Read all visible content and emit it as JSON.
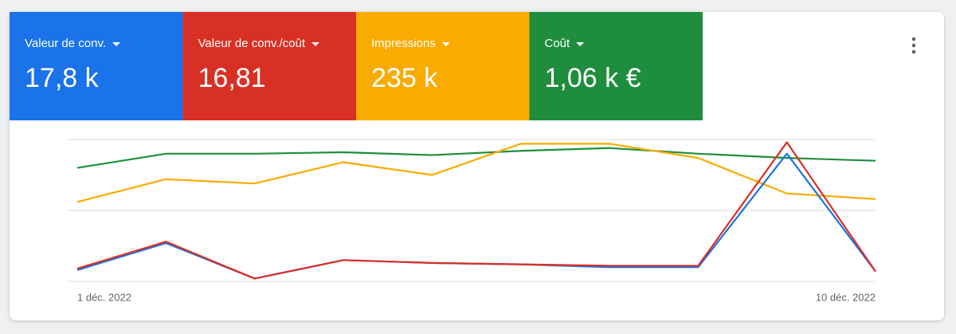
{
  "chart_data": {
    "type": "line",
    "categories": [
      "1 déc. 2022",
      null,
      null,
      null,
      null,
      null,
      null,
      null,
      null,
      "10 déc. 2022"
    ],
    "ylim": [
      0,
      100
    ],
    "yticks": [
      0,
      50,
      100
    ],
    "grid": true,
    "series": [
      {
        "name": "Valeur de conv.",
        "summary": "17,8 k",
        "color": "#1a73e8",
        "values": [
          8,
          27,
          2,
          15,
          13,
          12,
          10,
          10,
          90,
          7
        ]
      },
      {
        "name": "Valeur de conv./coût",
        "summary": "16,81",
        "color": "#d93025",
        "values": [
          9,
          28,
          2,
          15,
          13,
          12,
          11,
          11,
          98,
          7
        ]
      },
      {
        "name": "Impressions",
        "summary": "235 k",
        "color": "#f9ab00",
        "values": [
          56,
          72,
          69,
          84,
          75,
          97,
          97,
          87,
          62,
          58
        ]
      },
      {
        "name": "Coût",
        "summary": "1,06 k €",
        "color": "#1e8e3e",
        "values": [
          80,
          90,
          90,
          91,
          89,
          92,
          94,
          90,
          87,
          85
        ]
      }
    ]
  }
}
